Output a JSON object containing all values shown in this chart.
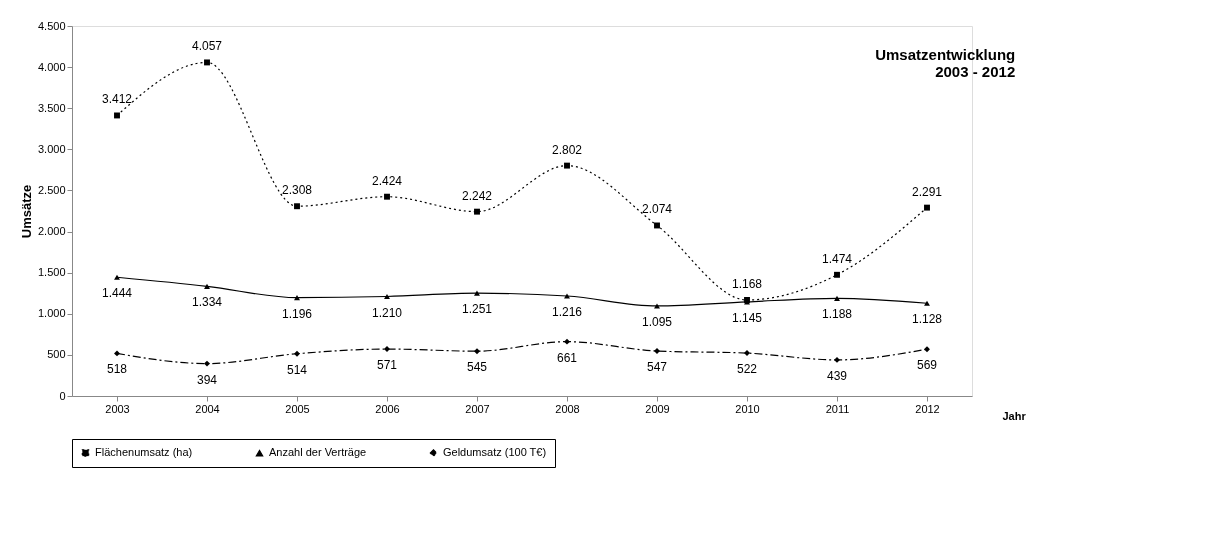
{
  "chart_data": {
    "type": "line",
    "title": "Umsatzentwicklung\n2003 - 2012",
    "xlabel": "Jahr",
    "ylabel": "Umsätze",
    "categories": [
      "2003",
      "2004",
      "2005",
      "2006",
      "2007",
      "2008",
      "2009",
      "2010",
      "2011",
      "2012"
    ],
    "series": [
      {
        "name": "Flächenumsatz (ha)",
        "color": "#000000",
        "marker": "square",
        "line_style": "dotted",
        "values": [
          3412,
          4057,
          2308,
          2424,
          2242,
          2802,
          2074,
          1168,
          1474,
          2291
        ],
        "value_labels": [
          "3.412",
          "4.057",
          "2.308",
          "2.424",
          "2.242",
          "2.802",
          "2.074",
          "1.168",
          "1.474",
          "2.291"
        ]
      },
      {
        "name": "Anzahl der Verträge",
        "color": "#000000",
        "marker": "triangle",
        "line_style": "solid",
        "values": [
          1444,
          1334,
          1196,
          1210,
          1251,
          1216,
          1095,
          1145,
          1188,
          1128
        ],
        "value_labels": [
          "1.444",
          "1.334",
          "1.196",
          "1.210",
          "1.251",
          "1.216",
          "1.095",
          "1.145",
          "1.188",
          "1.128"
        ]
      },
      {
        "name": "Geldumsatz (100 T€)",
        "color": "#000000",
        "marker": "diamond",
        "line_style": "dashed",
        "values": [
          518,
          394,
          514,
          571,
          545,
          661,
          547,
          522,
          439,
          569
        ],
        "value_labels": [
          "518",
          "394",
          "514",
          "571",
          "545",
          "661",
          "547",
          "522",
          "439",
          "569"
        ]
      }
    ],
    "ylim": [
      0,
      4500
    ],
    "yticks": [
      0,
      500,
      {
        "value": 1000,
        "label": "1.000"
      },
      {
        "value": 1500,
        "label": "1.500"
      },
      {
        "value": 2000,
        "label": "2.000"
      },
      {
        "value": 2500,
        "label": "2.500"
      },
      {
        "value": 3000,
        "label": "3.000"
      },
      {
        "value": 3500,
        "label": "3.500"
      },
      {
        "value": 4000,
        "label": "4.000"
      },
      {
        "value": 4500,
        "label": "4.500"
      }
    ],
    "grid": false,
    "legend": "bottom"
  }
}
